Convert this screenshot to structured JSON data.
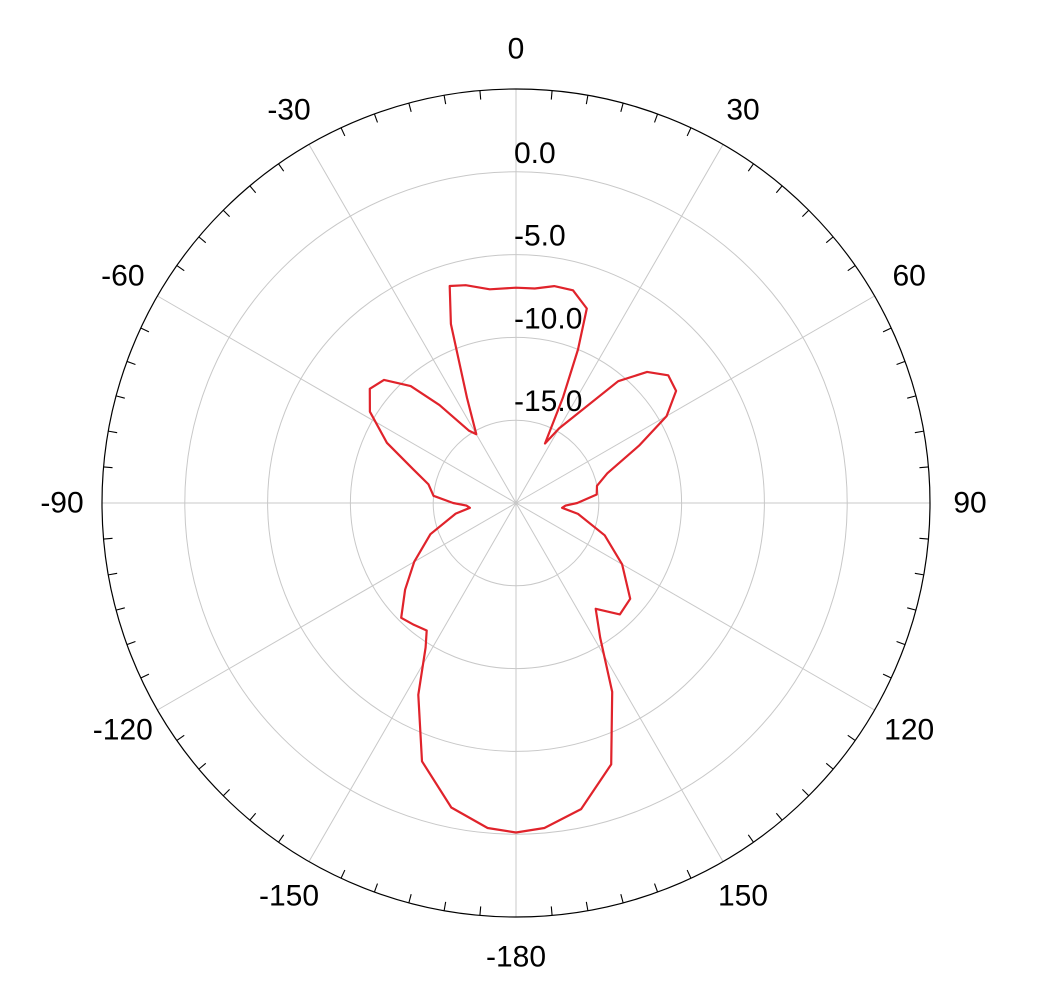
{
  "chart_data": {
    "type": "polar-line",
    "title": "",
    "angle_unit": "deg",
    "angle_zero_direction": "top",
    "angle_direction": "clockwise",
    "angle_ticks": [
      0,
      30,
      60,
      90,
      120,
      150,
      -180,
      -150,
      -120,
      -90,
      -60,
      -30
    ],
    "angle_tick_labels": [
      "0",
      "30",
      "60",
      "90",
      "120",
      "150",
      "-180",
      "-150",
      "-120",
      "-90",
      "-60",
      "-30"
    ],
    "radial_range": [
      -20,
      5
    ],
    "radial_ticks": [
      0.0,
      -5.0,
      -10.0,
      -15.0
    ],
    "radial_tick_labels": [
      "0.0",
      "-5.0",
      "-10.0",
      "-15.0"
    ],
    "grid": true,
    "series": [
      {
        "color": "#e0232b",
        "points": [
          [
            0,
            -7.0
          ],
          [
            5,
            -7.0
          ],
          [
            10,
            -6.7
          ],
          [
            15,
            -6.7
          ],
          [
            20,
            -7.5
          ],
          [
            22,
            -10.0
          ],
          [
            24,
            -13.0
          ],
          [
            26,
            -16.0
          ],
          [
            30,
            -14.8
          ],
          [
            40,
            -10.4
          ],
          [
            45,
            -8.8
          ],
          [
            50,
            -8.0
          ],
          [
            55,
            -8.2
          ],
          [
            60,
            -9.5
          ],
          [
            65,
            -11.8
          ],
          [
            72,
            -14.2
          ],
          [
            78,
            -15.0
          ],
          [
            84,
            -15.1
          ],
          [
            90,
            -16.3
          ],
          [
            93,
            -17.0
          ],
          [
            96,
            -17.2
          ],
          [
            100,
            -16.2
          ],
          [
            110,
            -14.3
          ],
          [
            120,
            -12.6
          ],
          [
            130,
            -11.0
          ],
          [
            137,
            -10.8
          ],
          [
            143,
            -12.0
          ],
          [
            148,
            -10.4
          ],
          [
            153,
            -7.2
          ],
          [
            160,
            -3.2
          ],
          [
            168,
            -1.1
          ],
          [
            175,
            -0.3
          ],
          [
            180,
            -0.1
          ],
          [
            -175,
            -0.3
          ],
          [
            -168,
            -1.2
          ],
          [
            -160,
            -3.4
          ],
          [
            -153,
            -7.0
          ],
          [
            -148,
            -9.7
          ],
          [
            -145,
            -10.6
          ],
          [
            -140,
            -10.4
          ],
          [
            -135,
            -10.2
          ],
          [
            -128,
            -11.5
          ],
          [
            -120,
            -12.9
          ],
          [
            -110,
            -14.5
          ],
          [
            -100,
            -16.3
          ],
          [
            -96,
            -17.2
          ],
          [
            -93,
            -17.0
          ],
          [
            -90,
            -16.2
          ],
          [
            -85,
            -15.0
          ],
          [
            -78,
            -14.6
          ],
          [
            -72,
            -13.5
          ],
          [
            -65,
            -11.4
          ],
          [
            -58,
            -9.6
          ],
          [
            -52,
            -8.8
          ],
          [
            -47,
            -9.1
          ],
          [
            -42,
            -10.5
          ],
          [
            -38,
            -12.5
          ],
          [
            -33,
            -14.8
          ],
          [
            -30,
            -15.2
          ],
          [
            -25,
            -13.0
          ],
          [
            -20,
            -8.5
          ],
          [
            -17,
            -6.3
          ],
          [
            -13,
            -6.5
          ],
          [
            -7,
            -7.0
          ],
          [
            0,
            -7.0
          ]
        ]
      }
    ]
  }
}
